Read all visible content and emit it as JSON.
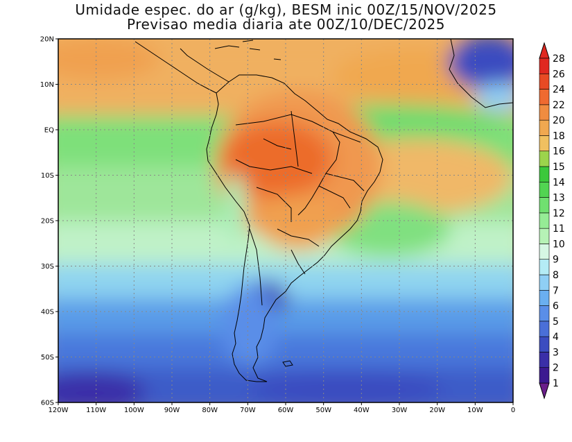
{
  "title": {
    "line1": "Umidade espec. do ar (g/kg), BESM inic 00Z/15/NOV/2025",
    "line2": "Previsao media diaria ate 00Z/10/DEC/2025"
  },
  "map": {
    "lon_range": [
      -120,
      0
    ],
    "lat_range": [
      -60,
      20
    ],
    "grid": true,
    "lat_ticks": [
      "20N",
      "10N",
      "EQ",
      "10S",
      "20S",
      "30S",
      "40S",
      "50S",
      "60S"
    ],
    "lon_ticks": [
      "120W",
      "110W",
      "100W",
      "90W",
      "80W",
      "70W",
      "60W",
      "50W",
      "40W",
      "30W",
      "20W",
      "10W",
      "0"
    ]
  },
  "colorbar": {
    "levels": [
      1,
      2,
      3,
      4,
      5,
      6,
      7,
      8,
      9,
      10,
      11,
      12,
      13,
      14,
      15,
      16,
      18,
      20,
      22,
      24,
      26,
      28
    ],
    "colors": [
      "#3c1990",
      "#3a2fa8",
      "#3b4cc0",
      "#4a6fd8",
      "#5a8ee8",
      "#6aaff0",
      "#8fcff5",
      "#b4ecf5",
      "#d6f7e4",
      "#b6f2b6",
      "#96ec96",
      "#70e070",
      "#52d452",
      "#3cc83c",
      "#9cd44c",
      "#f0c060",
      "#f0a850",
      "#f08c40",
      "#ef6a30",
      "#e84a24",
      "#e02820"
    ],
    "top_color": "#e02820",
    "bottom_color": "#6a1e8a"
  }
}
